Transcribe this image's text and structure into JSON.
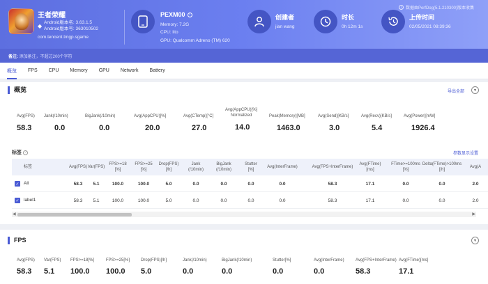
{
  "header": {
    "version_note": "数据由PerfDog(5.1.210300)版本收集",
    "app": {
      "name": "王者荣耀",
      "version_line": "Android版本名: 3.63.1.5",
      "code_line": "Android版本号: 363010502",
      "package": "com.tencent.tmgp.sgame"
    },
    "device": {
      "model": "PEXM00",
      "memory": "Memory: 7.2G",
      "cpu": "CPU: lito",
      "gpu": "GPU: Qualcomm Adreno (TM) 620"
    },
    "creator": {
      "title": "创建者",
      "value": "jian wang"
    },
    "duration": {
      "title": "时长",
      "value": "0h 12m 1s"
    },
    "upload": {
      "title": "上传时间",
      "value": "02/05/2021 08:39:36"
    },
    "notes_label": "备注:",
    "notes_placeholder": "添加备注，不超过200个字符"
  },
  "tabs": [
    "概览",
    "FPS",
    "CPU",
    "Memory",
    "GPU",
    "Network",
    "Battery"
  ],
  "overview": {
    "title": "概览",
    "export_label": "导出全部",
    "metrics": [
      {
        "label": "Avg(FPS)",
        "value": "58.3"
      },
      {
        "label": "Jank(/10min)",
        "value": "0.0"
      },
      {
        "label": "BigJank(/10min)",
        "value": "0.0"
      },
      {
        "label": "Avg(AppCPU)[%]",
        "value": "20.0"
      },
      {
        "label": "Avg(CTemp)[°C]",
        "value": "27.0"
      },
      {
        "label": "Avg(AppCPU)[%]\nNormalized",
        "value": "14.0"
      },
      {
        "label": "Peak(Memory)[MB]",
        "value": "1463.0"
      },
      {
        "label": "Avg(Send)[KB/s]",
        "value": "3.0"
      },
      {
        "label": "Avg(Recv)[KB/s]",
        "value": "5.4"
      },
      {
        "label": "Avg(Power)[mW]",
        "value": "1926.4"
      }
    ],
    "tags_title": "标签",
    "settings_link": "参数显示设置",
    "table": {
      "tag_col": "标签",
      "columns": [
        "Avg(FPS)",
        "Var(FPS)",
        "FPS>=18\n[%]",
        "FPS>=25\n[%]",
        "Drop(FPS)\n[/h]",
        "Jank\n(/10min)",
        "BigJank\n(/10min)",
        "Stutter\n[%]",
        "Avg(InterFrame)",
        "Avg(FPS+InterFrame)",
        "Avg(FTime)\n[ms]",
        "FTime>=100ms\n[%]",
        "Delta(FTime)>100ms\n[/h]",
        "Avg(A"
      ],
      "rows": [
        {
          "tag": "All",
          "cells": [
            "58.3",
            "5.1",
            "100.0",
            "100.0",
            "5.0",
            "0.0",
            "0.0",
            "0.0",
            "0.0",
            "58.3",
            "17.1",
            "0.0",
            "0.0",
            "2.0"
          ]
        },
        {
          "tag": "label1",
          "cells": [
            "58.3",
            "5.1",
            "100.0",
            "100.0",
            "5.0",
            "0.0",
            "0.0",
            "0.0",
            "0.0",
            "58.3",
            "17.1",
            "0.0",
            "0.0",
            "2.0"
          ]
        }
      ]
    }
  },
  "fps": {
    "title": "FPS",
    "metrics": [
      {
        "label": "Avg(FPS)",
        "value": "58.3"
      },
      {
        "label": "Var(FPS)",
        "value": "5.1"
      },
      {
        "label": "FPS>=18[%]",
        "value": "100.0"
      },
      {
        "label": "FPS>=25[%]",
        "value": "100.0"
      },
      {
        "label": "Drop(FPS)[/h]",
        "value": "5.0"
      },
      {
        "label": "Jank(/10min)",
        "value": "0.0"
      },
      {
        "label": "BigJank(/10min)",
        "value": "0.0"
      },
      {
        "label": "Stutter[%]",
        "value": "0.0"
      },
      {
        "label": "Avg(InterFrame)",
        "value": "0.0"
      },
      {
        "label": "Avg(FPS+InterFrame)",
        "value": "58.3"
      },
      {
        "label": "Avg(FTime)[ms]",
        "value": "17.1"
      }
    ]
  }
}
